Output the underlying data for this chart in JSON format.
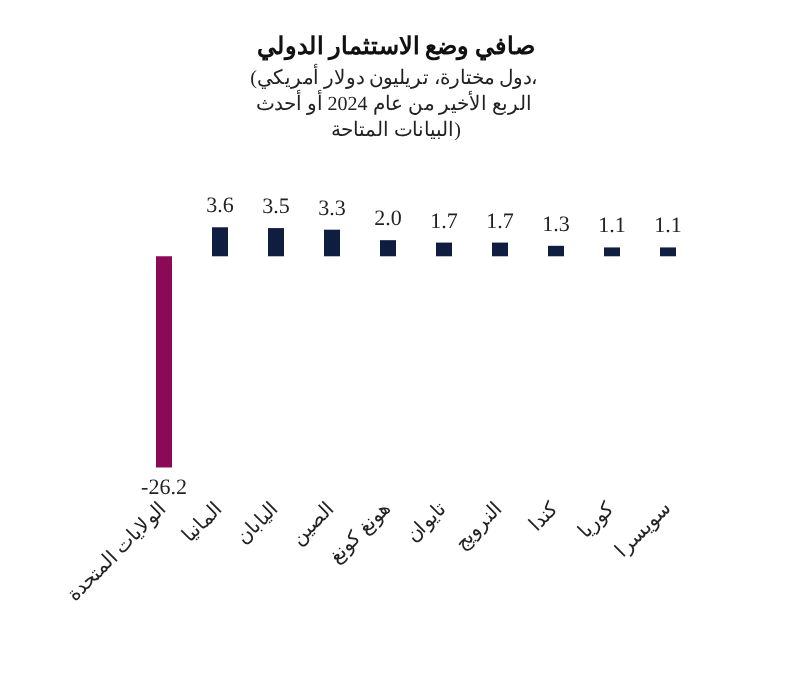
{
  "chart_data": {
    "type": "bar",
    "title": "صافي وضع الاستثمار الدولي",
    "subtitle": "(دول مختارة، تريليون دولار أمريكي، الربع الأخير من عام 2024 أو أحدث البيانات المتاحة)",
    "categories": [
      "الولايات المتحدة",
      "المانيا",
      "اليابان",
      "الصين",
      "هونغ كونغ",
      "تايوان",
      "النرويج",
      "كندا",
      "كوريا",
      "سويسرا"
    ],
    "values": [
      -26.2,
      3.6,
      3.5,
      3.3,
      2.0,
      1.7,
      1.7,
      1.3,
      1.1,
      1.1
    ],
    "colors": [
      "#8b0a57",
      "#0f1d40",
      "#0f1d40",
      "#0f1d40",
      "#0f1d40",
      "#0f1d40",
      "#0f1d40",
      "#0f1d40",
      "#0f1d40",
      "#0f1d40"
    ],
    "value_labels": [
      "-26.2",
      "3.6",
      "3.5",
      "3.3",
      "2.0",
      "1.7",
      "1.7",
      "1.3",
      "1.1",
      "1.1"
    ]
  }
}
